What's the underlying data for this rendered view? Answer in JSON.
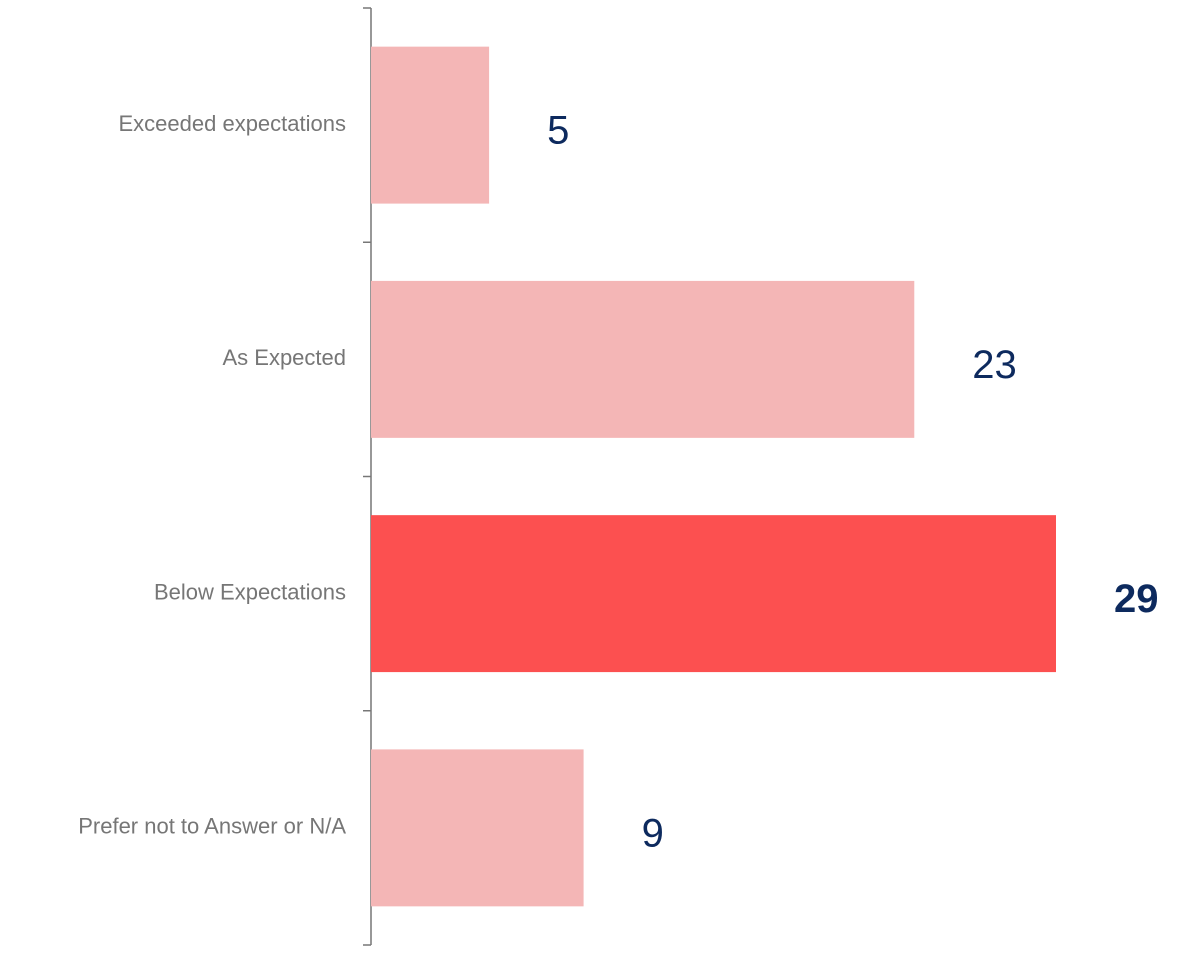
{
  "chart_data": {
    "type": "hbar",
    "categories": [
      "Exceeded expectations",
      "As Expected",
      "Below Expectations",
      "Prefer not to Answer or N/A"
    ],
    "values": [
      5,
      23,
      29,
      9
    ],
    "colors": [
      "#f4b6b6",
      "#f4b6b6",
      "#fc5050",
      "#f4b6b6"
    ],
    "highlight_index": 2
  }
}
